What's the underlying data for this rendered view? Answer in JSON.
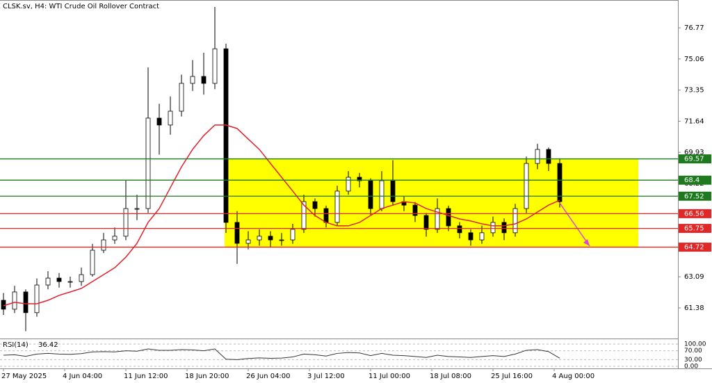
{
  "chart_data": {
    "type": "candlestick",
    "title": "CLSK.sv, H4:  WTI Crude Oil Rollover Contract",
    "x": [
      0,
      1,
      2,
      3,
      4,
      5,
      6,
      7,
      8,
      9,
      10,
      11,
      12,
      13,
      14,
      15,
      16,
      17,
      18,
      19,
      20,
      21,
      22,
      23,
      24,
      25,
      26,
      27,
      28,
      29,
      30,
      31,
      32,
      33,
      34,
      35,
      36,
      37,
      38,
      39,
      40,
      41,
      42,
      43,
      44,
      45,
      46,
      47,
      48,
      49,
      50
    ],
    "open": [
      61.8,
      61.31,
      62.26,
      61.12,
      62.64,
      63.02,
      62.83,
      62.83,
      63.21,
      64.55,
      65.12,
      65.32,
      66.84,
      66.84,
      71.81,
      71.43,
      72.19,
      73.72,
      74.1,
      73.72,
      75.62,
      66.08,
      64.93,
      65.12,
      65.32,
      65.12,
      65.12,
      65.7,
      67.22,
      66.84,
      66.08,
      67.8,
      68.56,
      68.37,
      66.84,
      68.37,
      67.22,
      67.03,
      66.46,
      65.7,
      66.84,
      65.89,
      65.51,
      65.12,
      65.51,
      66.08,
      65.51,
      66.84,
      69.32,
      70.09,
      69.32
    ],
    "high": [
      62.2,
      62.6,
      62.4,
      63.0,
      63.4,
      63.3,
      63.1,
      63.6,
      64.9,
      65.5,
      65.8,
      68.4,
      67.6,
      74.6,
      72.6,
      73.0,
      74.2,
      75.0,
      75.4,
      77.92,
      75.9,
      66.7,
      65.6,
      65.7,
      65.6,
      65.5,
      66.0,
      67.6,
      67.4,
      67.0,
      68.1,
      68.9,
      68.8,
      68.5,
      68.9,
      69.5,
      67.5,
      67.2,
      66.6,
      67.4,
      67.0,
      66.1,
      65.7,
      65.9,
      66.4,
      66.3,
      67.1,
      69.7,
      70.4,
      70.2,
      69.6
    ],
    "low": [
      61.0,
      61.1,
      60.1,
      60.9,
      62.4,
      62.5,
      62.5,
      62.6,
      63.1,
      64.4,
      64.9,
      65.1,
      66.2,
      66.6,
      69.8,
      70.9,
      71.9,
      73.3,
      73.1,
      73.4,
      65.5,
      63.8,
      64.6,
      64.8,
      64.7,
      64.8,
      64.9,
      65.5,
      66.4,
      65.8,
      65.9,
      67.6,
      68.0,
      66.5,
      66.7,
      67.0,
      66.7,
      66.1,
      65.3,
      65.5,
      65.6,
      65.2,
      64.8,
      64.9,
      65.3,
      65.1,
      65.3,
      66.6,
      69.0,
      68.9,
      66.9
    ],
    "close": [
      61.31,
      62.26,
      61.12,
      62.64,
      63.02,
      62.83,
      62.83,
      63.21,
      64.55,
      65.12,
      65.32,
      66.84,
      66.84,
      71.81,
      71.43,
      72.19,
      73.72,
      74.1,
      73.72,
      75.62,
      66.08,
      64.93,
      65.12,
      65.32,
      65.12,
      65.12,
      65.7,
      67.22,
      66.84,
      66.08,
      67.8,
      68.56,
      68.37,
      66.84,
      68.37,
      67.22,
      67.03,
      66.46,
      65.7,
      66.84,
      65.89,
      65.51,
      65.12,
      65.51,
      66.08,
      65.51,
      66.84,
      69.32,
      70.09,
      69.32,
      67.22
    ],
    "up_color": "#ffffff",
    "down_color": "#000000",
    "xlim": [
      -0.3125,
      60.625
    ],
    "xticks": [
      {
        "value": 0,
        "label": "27 May 2025"
      },
      {
        "value": 5.5,
        "label": "4 Jun 04:00"
      },
      {
        "value": 11,
        "label": "11 Jun 12:00"
      },
      {
        "value": 16.5,
        "label": "18 Jun 20:00"
      },
      {
        "value": 22,
        "label": "26 Jun 04:00"
      },
      {
        "value": 27.5,
        "label": "3 Jul 12:00"
      },
      {
        "value": 33,
        "label": "11 Jul 00:00"
      },
      {
        "value": 38.5,
        "label": "18 Jul 08:00"
      },
      {
        "value": 44,
        "label": "25 Jul 16:00"
      },
      {
        "value": 49.5,
        "label": "4 Aug 00:00"
      }
    ],
    "ylim": [
      59.7,
      78.3
    ],
    "yticks": [
      76.77,
      75.06,
      73.35,
      71.64,
      69.93,
      68.22,
      66.51,
      64.8,
      63.09,
      61.38
    ],
    "moving_average": {
      "color": "#e0202a",
      "values": [
        61.5,
        61.69,
        61.61,
        61.61,
        61.8,
        62.07,
        62.26,
        62.45,
        62.83,
        63.21,
        63.59,
        64.17,
        64.93,
        66.08,
        66.84,
        67.99,
        69.13,
        70.09,
        70.85,
        71.43,
        71.43,
        71.24,
        70.66,
        70.09,
        69.32,
        68.56,
        67.8,
        67.03,
        66.46,
        66.08,
        65.89,
        65.89,
        66.08,
        66.46,
        66.84,
        67.03,
        67.22,
        67.15,
        66.84,
        66.65,
        66.46,
        66.27,
        66.16,
        66.0,
        65.89,
        65.89,
        66.0,
        66.27,
        66.65,
        67.03,
        67.3
      ]
    },
    "levels": [
      {
        "value": 69.57,
        "color": "#1f7a1f"
      },
      {
        "value": 68.4,
        "color": "#1f7a1f"
      },
      {
        "value": 67.52,
        "color": "#1f7a1f"
      },
      {
        "value": 66.56,
        "color": "#e02828"
      },
      {
        "value": 65.75,
        "color": "#e02828"
      },
      {
        "value": 64.72,
        "color": "#e02828"
      }
    ],
    "zone_color": "#ffff00",
    "rsi": {
      "name": "RSI(14)",
      "color": "#333333",
      "values": [
        50,
        52,
        45,
        55,
        58,
        55,
        54,
        57,
        65,
        66,
        65,
        70,
        68,
        78,
        72,
        72,
        75,
        74,
        70,
        78,
        32,
        30,
        35,
        38,
        36,
        37,
        42,
        55,
        52,
        46,
        58,
        62,
        60,
        48,
        58,
        50,
        48,
        44,
        40,
        50,
        44,
        42,
        40,
        44,
        48,
        44,
        55,
        72,
        75,
        66,
        36.42
      ],
      "ylim": [
        -9.4,
        118.75
      ],
      "yticks": [
        {
          "value": 100,
          "label": "100.00"
        },
        {
          "value": 70,
          "label": "70.00"
        },
        {
          "value": 30,
          "label": "30.00"
        },
        {
          "value": 0,
          "label": "0.00"
        }
      ]
    }
  }
}
